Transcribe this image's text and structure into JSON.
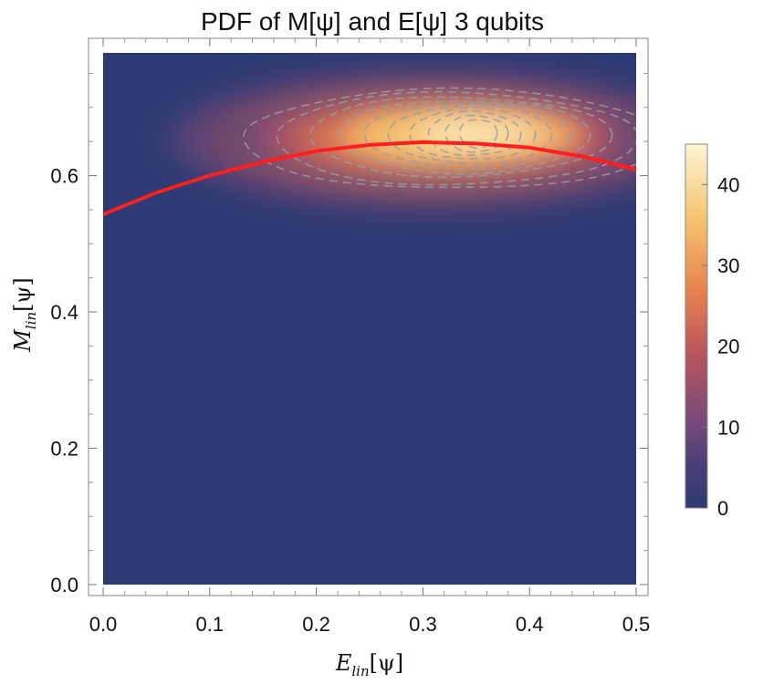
{
  "chart_data": {
    "type": "heatmap",
    "title": "PDF of M[ψ] and E[ψ] 3 qubits",
    "xlabel": {
      "main": "E",
      "sub": "lin",
      "arg": "[ψ]"
    },
    "ylabel": {
      "main": "M",
      "sub": "lin",
      "arg": "[ψ]"
    },
    "xlim": [
      0.0,
      0.5
    ],
    "ylim": [
      0.0,
      0.78
    ],
    "x_ticks": [
      "0.0",
      "0.1",
      "0.2",
      "0.3",
      "0.4",
      "0.5"
    ],
    "y_ticks": [
      "0.0",
      "0.2",
      "0.4",
      "0.6"
    ],
    "x_tick_values": [
      0.0,
      0.1,
      0.2,
      0.3,
      0.4,
      0.5
    ],
    "y_tick_values": [
      0.0,
      0.2,
      0.4,
      0.6
    ],
    "colorbar": {
      "range": [
        0,
        45
      ],
      "ticks": [
        "0",
        "10",
        "20",
        "30",
        "40"
      ],
      "tick_values": [
        0,
        10,
        20,
        30,
        40
      ],
      "colors": [
        "#2e3a73",
        "#6a4a7e",
        "#b8545c",
        "#e8824f",
        "#f6c670",
        "#fff5d6"
      ]
    },
    "density_peak": {
      "x": 0.32,
      "y": 0.655,
      "value": 45
    },
    "fit_curve": {
      "color": "#ff1f1f",
      "x": [
        0.0,
        0.05,
        0.1,
        0.15,
        0.2,
        0.25,
        0.3,
        0.35,
        0.4,
        0.45,
        0.5
      ],
      "y": [
        0.543,
        0.575,
        0.6,
        0.62,
        0.636,
        0.645,
        0.649,
        0.647,
        0.641,
        0.628,
        0.609
      ]
    },
    "contour_style": "dashed gray",
    "grid": false
  }
}
